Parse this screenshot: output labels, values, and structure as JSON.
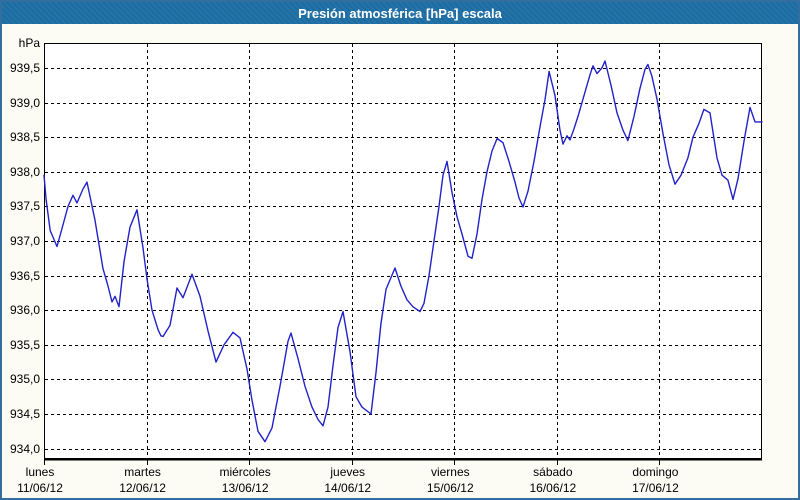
{
  "window": {
    "title": "Presión atmosférica [hPa] escala"
  },
  "colors": {
    "titlebar_bg": "#1b6ca3",
    "titlebar_text": "#ffffff",
    "frame_border": "#336f9e",
    "page_bg": "#fcfcf4",
    "plot_bg": "#ffffff",
    "grid": "#000000",
    "line": "#2222c8"
  },
  "chart_data": {
    "type": "line",
    "title": "Presión atmosférica [hPa] escala",
    "unit_label": "hPa",
    "grid": true,
    "legend": "none",
    "ylim_plot": [
      933.85,
      939.86
    ],
    "y_tick_step": 0.5,
    "y_ticks": [
      {
        "v": 939.5,
        "label": "939,5"
      },
      {
        "v": 939.0,
        "label": "939,0"
      },
      {
        "v": 938.5,
        "label": "938,5"
      },
      {
        "v": 938.0,
        "label": "938,0"
      },
      {
        "v": 937.5,
        "label": "937,5"
      },
      {
        "v": 937.0,
        "label": "937,0"
      },
      {
        "v": 936.5,
        "label": "936,5"
      },
      {
        "v": 936.0,
        "label": "936,0"
      },
      {
        "v": 935.5,
        "label": "935,5"
      },
      {
        "v": 935.0,
        "label": "935,0"
      },
      {
        "v": 934.5,
        "label": "934,5"
      },
      {
        "v": 934.0,
        "label": "934,0"
      }
    ],
    "x_days": [
      {
        "name": "lunes",
        "date": "11/06/12"
      },
      {
        "name": "martes",
        "date": "12/06/12"
      },
      {
        "name": "miércoles",
        "date": "13/06/12"
      },
      {
        "name": "jueves",
        "date": "14/06/12"
      },
      {
        "name": "viernes",
        "date": "15/06/12"
      },
      {
        "name": "sábado",
        "date": "16/06/12"
      },
      {
        "name": "domingo",
        "date": "17/06/12"
      }
    ],
    "series": [
      {
        "name": "Presión atmosférica",
        "color": "#2222c8",
        "points": [
          [
            0,
            937.95
          ],
          [
            0.02,
            937.6
          ],
          [
            0.06,
            937.15
          ],
          [
            0.127,
            936.92
          ],
          [
            0.175,
            937.18
          ],
          [
            0.234,
            937.5
          ],
          [
            0.283,
            937.66
          ],
          [
            0.322,
            937.55
          ],
          [
            0.38,
            937.75
          ],
          [
            0.419,
            937.85
          ],
          [
            0.497,
            937.3
          ],
          [
            0.575,
            936.6
          ],
          [
            0.624,
            936.35
          ],
          [
            0.663,
            936.12
          ],
          [
            0.692,
            936.2
          ],
          [
            0.731,
            936.05
          ],
          [
            0.78,
            936.7
          ],
          [
            0.838,
            937.2
          ],
          [
            0.907,
            937.45
          ],
          [
            0.965,
            936.9
          ],
          [
            1.004,
            936.45
          ],
          [
            1.053,
            936.0
          ],
          [
            1.111,
            935.72
          ],
          [
            1.14,
            935.63
          ],
          [
            1.16,
            935.62
          ],
          [
            1.228,
            935.78
          ],
          [
            1.297,
            936.32
          ],
          [
            1.355,
            936.18
          ],
          [
            1.443,
            936.52
          ],
          [
            1.521,
            936.2
          ],
          [
            1.599,
            935.7
          ],
          [
            1.677,
            935.25
          ],
          [
            1.755,
            935.5
          ],
          [
            1.843,
            935.68
          ],
          [
            1.911,
            935.6
          ],
          [
            1.979,
            935.15
          ],
          [
            2.028,
            934.7
          ],
          [
            2.086,
            934.25
          ],
          [
            2.155,
            934.1
          ],
          [
            2.223,
            934.3
          ],
          [
            2.301,
            934.9
          ],
          [
            2.379,
            935.55
          ],
          [
            2.408,
            935.67
          ],
          [
            2.476,
            935.3
          ],
          [
            2.545,
            934.9
          ],
          [
            2.613,
            934.6
          ],
          [
            2.671,
            934.42
          ],
          [
            2.72,
            934.33
          ],
          [
            2.769,
            934.6
          ],
          [
            2.818,
            935.2
          ],
          [
            2.866,
            935.75
          ],
          [
            2.915,
            935.98
          ],
          [
            2.983,
            935.4
          ],
          [
            3.042,
            934.75
          ],
          [
            3.1,
            934.6
          ],
          [
            3.188,
            934.5
          ],
          [
            3.237,
            935.1
          ],
          [
            3.285,
            935.8
          ],
          [
            3.334,
            936.3
          ],
          [
            3.422,
            936.61
          ],
          [
            3.48,
            936.35
          ],
          [
            3.539,
            936.15
          ],
          [
            3.597,
            936.05
          ],
          [
            3.666,
            935.98
          ],
          [
            3.705,
            936.1
          ],
          [
            3.753,
            936.5
          ],
          [
            3.802,
            937.0
          ],
          [
            3.851,
            937.5
          ],
          [
            3.89,
            937.95
          ],
          [
            3.929,
            938.15
          ],
          [
            3.978,
            937.7
          ],
          [
            4.026,
            937.35
          ],
          [
            4.075,
            937.1
          ],
          [
            4.134,
            936.78
          ],
          [
            4.173,
            936.75
          ],
          [
            4.221,
            937.1
          ],
          [
            4.27,
            937.6
          ],
          [
            4.319,
            938.0
          ],
          [
            4.368,
            938.3
          ],
          [
            4.417,
            938.48
          ],
          [
            4.475,
            938.42
          ],
          [
            4.533,
            938.15
          ],
          [
            4.592,
            937.85
          ],
          [
            4.631,
            937.62
          ],
          [
            4.67,
            937.49
          ],
          [
            4.719,
            937.72
          ],
          [
            4.777,
            938.15
          ],
          [
            4.836,
            938.65
          ],
          [
            4.885,
            939.05
          ],
          [
            4.924,
            939.45
          ],
          [
            4.982,
            939.1
          ],
          [
            5.031,
            938.6
          ],
          [
            5.06,
            938.4
          ],
          [
            5.099,
            938.52
          ],
          [
            5.128,
            938.46
          ],
          [
            5.167,
            938.62
          ],
          [
            5.206,
            938.8
          ],
          [
            5.265,
            939.1
          ],
          [
            5.323,
            939.4
          ],
          [
            5.352,
            939.53
          ],
          [
            5.391,
            939.42
          ],
          [
            5.44,
            939.5
          ],
          [
            5.469,
            939.6
          ],
          [
            5.528,
            939.25
          ],
          [
            5.586,
            938.85
          ],
          [
            5.645,
            938.6
          ],
          [
            5.693,
            938.45
          ],
          [
            5.752,
            938.8
          ],
          [
            5.81,
            939.2
          ],
          [
            5.859,
            939.48
          ],
          [
            5.888,
            939.55
          ],
          [
            5.927,
            939.38
          ],
          [
            5.976,
            939.05
          ],
          [
            6.035,
            938.55
          ],
          [
            6.093,
            938.1
          ],
          [
            6.152,
            937.82
          ],
          [
            6.21,
            937.95
          ],
          [
            6.278,
            938.2
          ],
          [
            6.327,
            938.5
          ],
          [
            6.386,
            938.7
          ],
          [
            6.434,
            938.9
          ],
          [
            6.493,
            938.85
          ],
          [
            6.561,
            938.2
          ],
          [
            6.61,
            937.95
          ],
          [
            6.668,
            937.88
          ],
          [
            6.717,
            937.6
          ],
          [
            6.766,
            937.9
          ],
          [
            6.825,
            938.45
          ],
          [
            6.883,
            938.93
          ],
          [
            6.932,
            938.72
          ],
          [
            7.0,
            938.72
          ]
        ]
      }
    ]
  }
}
